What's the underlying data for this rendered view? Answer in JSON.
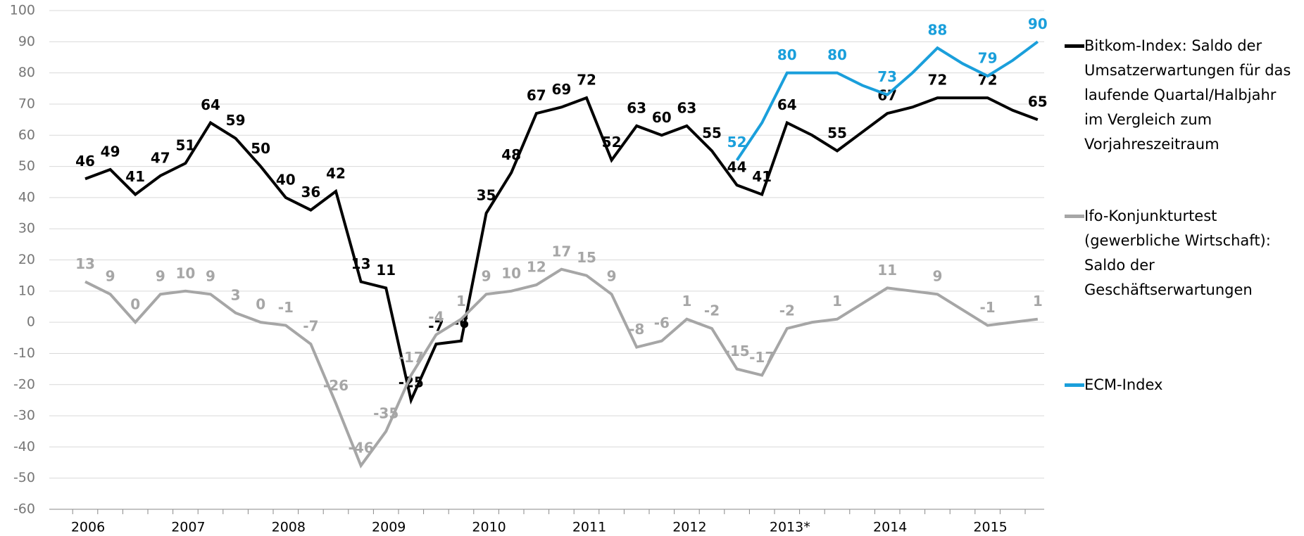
{
  "chart_data": {
    "type": "line",
    "categories": [
      "2006",
      null,
      null,
      null,
      "2007",
      null,
      null,
      null,
      "2008",
      null,
      null,
      null,
      "2009",
      null,
      null,
      null,
      "2010",
      null,
      null,
      null,
      "2011",
      null,
      null,
      null,
      "2012",
      null,
      null,
      null,
      "2013*",
      null,
      null,
      null,
      "2014",
      null,
      null,
      null,
      "2015",
      null,
      null
    ],
    "series": [
      {
        "name": "Bitkom-Index: Saldo der Umsatzerwartungen für das laufende Quartal/Halbjahr im Vergleich zum Vorjahreszeitraum",
        "color": "#000000",
        "values": [
          46,
          49,
          41,
          47,
          51,
          64,
          59,
          50,
          40,
          36,
          42,
          13,
          11,
          -25,
          -7,
          -6,
          35,
          48,
          67,
          69,
          72,
          52,
          63,
          60,
          63,
          55,
          44,
          41,
          64,
          60,
          55,
          61,
          67,
          69,
          72,
          72,
          72,
          68,
          65
        ],
        "value_labels": [
          "46",
          "49",
          "41",
          "47",
          "51",
          "64",
          "59",
          "50",
          "40",
          "36",
          "42",
          "13",
          "11",
          "-25",
          "-7",
          "-6",
          "35",
          "48",
          "67",
          "69",
          "72",
          "52",
          "63",
          "60",
          "63",
          "55",
          "44",
          "41",
          "64",
          null,
          "55",
          null,
          "67",
          null,
          "72",
          null,
          "72",
          null,
          "65"
        ]
      },
      {
        "name": "Ifo-Konjunkturtest (gewerbliche Wirtschaft): Saldo der Geschäftserwartungen",
        "color": "#a6a6a6",
        "values": [
          13,
          9,
          0,
          9,
          10,
          9,
          3,
          0,
          -1,
          -7,
          -26,
          -46,
          -35,
          -17,
          -4,
          1,
          9,
          10,
          12,
          17,
          15,
          9,
          -8,
          -6,
          1,
          -2,
          -15,
          -17,
          -2,
          0,
          1,
          6,
          11,
          10,
          9,
          4,
          -1,
          0,
          1
        ],
        "value_labels": [
          "13",
          "9",
          "0",
          "9",
          "10",
          "9",
          "3",
          "0",
          "-1",
          "-7",
          "-26",
          "-46",
          "-35",
          "-17",
          "-4",
          "1",
          "9",
          "10",
          "12",
          "17",
          "15",
          "9",
          "-8",
          "-6",
          "1",
          "-2",
          "-15",
          "-17",
          "-2",
          null,
          "1",
          null,
          "11",
          null,
          "9",
          null,
          "-1",
          null,
          "1"
        ]
      },
      {
        "name": "ECM-Index",
        "color": "#1a9fdb",
        "values": [
          null,
          null,
          null,
          null,
          null,
          null,
          null,
          null,
          null,
          null,
          null,
          null,
          null,
          null,
          null,
          null,
          null,
          null,
          null,
          null,
          null,
          null,
          null,
          null,
          null,
          null,
          52,
          64,
          80,
          80,
          80,
          76,
          73,
          80,
          88,
          83,
          79,
          84,
          90
        ],
        "value_labels": [
          null,
          null,
          null,
          null,
          null,
          null,
          null,
          null,
          null,
          null,
          null,
          null,
          null,
          null,
          null,
          null,
          null,
          null,
          null,
          null,
          null,
          null,
          null,
          null,
          null,
          null,
          "52",
          null,
          "80",
          null,
          "80",
          null,
          "73",
          null,
          "88",
          null,
          "79",
          null,
          "90"
        ]
      }
    ],
    "ylim": [
      -60,
      100
    ],
    "yticks": [
      -60,
      -50,
      -40,
      -30,
      -20,
      -10,
      0,
      10,
      20,
      30,
      40,
      50,
      60,
      70,
      80,
      90,
      100
    ],
    "grid": true
  }
}
